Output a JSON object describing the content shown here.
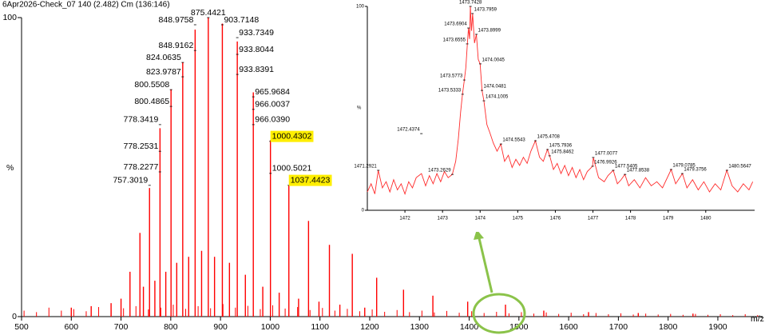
{
  "chart_data": [
    {
      "type": "spectrum",
      "title": "6Apr2026-Check_07 140 (2.482) Cm (136:146)",
      "y_label": "%",
      "x_label": "m/z",
      "color": "#ff0000",
      "axis_color": "#000000",
      "xlim": [
        500,
        1990
      ],
      "ylim": [
        0,
        100
      ],
      "xticks": [
        500,
        600,
        700,
        800,
        900,
        1000,
        1100,
        1200,
        1300,
        1400,
        1500,
        1600,
        1700,
        1800,
        1900
      ],
      "yticks": [
        0,
        100
      ],
      "x": [
        600,
        640,
        680,
        700,
        718,
        738,
        745,
        757.3019,
        768,
        778.3419,
        790,
        800.5508,
        812,
        824.0635,
        836,
        848.9758,
        862,
        875.4421,
        888,
        903.7148,
        918,
        933.7349,
        950,
        965.9684,
        985,
        1000.4302,
        1018,
        1037.4423,
        1057,
        1077,
        1098,
        1119,
        1140,
        1165,
        1190,
        1214,
        1268,
        1327,
        1397,
        1473,
        1550,
        1640,
        1740,
        1850
      ],
      "values": [
        3,
        3.5,
        4.5,
        6,
        15,
        28,
        10,
        43,
        12,
        63,
        15,
        76,
        18,
        85,
        20,
        96,
        22,
        100,
        20,
        98,
        18,
        92,
        14,
        75,
        10,
        59,
        8,
        44,
        6,
        32,
        5,
        24,
        4,
        21,
        3,
        13,
        9,
        7,
        5,
        4,
        2,
        1.5,
        1.2,
        1
      ],
      "noise_x": [
        505,
        530,
        555,
        580,
        605,
        630,
        655,
        680,
        705,
        730,
        755,
        780,
        805,
        830,
        855,
        880,
        905,
        930,
        955,
        980,
        1005,
        1030,
        1055,
        1080,
        1105,
        1130,
        1155,
        1180,
        1205,
        1230,
        1255,
        1280,
        1305,
        1330,
        1355,
        1380,
        1405,
        1430,
        1455,
        1480,
        1505,
        1530,
        1555,
        1580,
        1605,
        1630,
        1655,
        1680,
        1705,
        1730,
        1755,
        1780,
        1805,
        1830,
        1855,
        1880,
        1905,
        1930,
        1955,
        1980
      ],
      "noise_values": [
        2,
        1.5,
        3,
        2,
        2.5,
        1.8,
        3.2,
        2.2,
        2.8,
        3.5,
        2.4,
        3,
        4,
        2.6,
        3.5,
        2.8,
        4.2,
        3,
        3.6,
        2.5,
        3.8,
        2.7,
        3.2,
        2.2,
        2.9,
        2,
        2.6,
        1.8,
        2.4,
        1.6,
        2.2,
        1.5,
        2,
        1.4,
        1.9,
        1.3,
        1.8,
        1.2,
        1.6,
        1.1,
        1.5,
        1,
        1.4,
        0.9,
        1.3,
        0.8,
        1.2,
        0.8,
        1.1,
        0.7,
        1,
        0.7,
        0.9,
        0.6,
        0.9,
        0.6,
        0.8,
        0.5,
        0.8,
        0.5
      ],
      "label_text": [
        "757.3019",
        "778.2277",
        "778.2531",
        "778.3419",
        "800.4865",
        "800.5508",
        "823.9787",
        "824.0635",
        "848.9162",
        "848.9758",
        "875.4421",
        "903.7148",
        "933.7349",
        "933.8044",
        "933.8391",
        "965.9684",
        "966.0037",
        "966.0390",
        "1000.4302",
        "1000.5021",
        "1037.4423"
      ],
      "label_x": [
        757.3019,
        778.2277,
        778.2531,
        778.3419,
        800.4865,
        800.5508,
        823.9787,
        824.0635,
        848.9162,
        848.9758,
        875.4421,
        903.7148,
        933.7349,
        933.8044,
        933.8391,
        965.9684,
        966.0037,
        966.039,
        1000.4302,
        1000.5021,
        1037.4423
      ],
      "label_y": [
        43.9,
        48.4,
        55.3,
        64.2,
        70.3,
        75.9,
        80.2,
        85.0,
        89.0,
        97.6,
        100,
        97.6,
        93.3,
        87.7,
        81.0,
        73.5,
        69.3,
        64.2,
        58.6,
        47.9,
        43.9
      ],
      "highlight": [
        18,
        20
      ],
      "highlight_color": "#ffee00"
    },
    {
      "type": "profile",
      "y_label": "%",
      "color": "#ff2a2a",
      "axis_color": "#000000",
      "xlim": [
        1471,
        1481.3
      ],
      "ylim": [
        0,
        100
      ],
      "xticks": [
        1472,
        1473,
        1474,
        1475,
        1476,
        1477,
        1478,
        1479,
        1480
      ],
      "yticks": [
        0,
        100
      ],
      "x": [
        1471.0,
        1471.1,
        1471.2,
        1471.29,
        1471.4,
        1471.5,
        1471.6,
        1471.7,
        1471.8,
        1471.9,
        1472.0,
        1472.1,
        1472.2,
        1472.3,
        1472.44,
        1472.55,
        1472.65,
        1472.75,
        1472.85,
        1472.95,
        1473.05,
        1473.15,
        1473.26,
        1473.35,
        1473.42,
        1473.48,
        1473.53,
        1473.58,
        1473.62,
        1473.66,
        1473.69,
        1473.72,
        1473.74,
        1473.77,
        1473.8,
        1473.85,
        1473.9,
        1473.95,
        1474.0,
        1474.05,
        1474.1,
        1474.18,
        1474.26,
        1474.35,
        1474.45,
        1474.55,
        1474.65,
        1474.75,
        1474.85,
        1474.95,
        1475.05,
        1475.15,
        1475.25,
        1475.35,
        1475.47,
        1475.58,
        1475.68,
        1475.79,
        1475.85,
        1475.95,
        1476.05,
        1476.15,
        1476.25,
        1476.35,
        1476.45,
        1476.55,
        1476.65,
        1476.75,
        1476.85,
        1476.99,
        1477.01,
        1477.15,
        1477.3,
        1477.4,
        1477.54,
        1477.65,
        1477.75,
        1477.85,
        1477.95,
        1478.1,
        1478.25,
        1478.4,
        1478.55,
        1478.7,
        1478.85,
        1479.08,
        1479.2,
        1479.38,
        1479.5,
        1479.65,
        1479.8,
        1479.95,
        1480.1,
        1480.25,
        1480.4,
        1480.56,
        1480.7,
        1480.85,
        1481.0,
        1481.15,
        1481.25
      ],
      "values": [
        9,
        13,
        8,
        19.6,
        11,
        14,
        9,
        15,
        10,
        13,
        8,
        14,
        11,
        16,
        18,
        12,
        17,
        13,
        18,
        14,
        19,
        16,
        17.6,
        24,
        35,
        48,
        56.9,
        63.9,
        70,
        81.6,
        89.4,
        84,
        100,
        88,
        96.5,
        82,
        86.3,
        74,
        71.8,
        58.8,
        53.7,
        42,
        38,
        33,
        29,
        32.5,
        24,
        27,
        21,
        25,
        22,
        26,
        23,
        29,
        34.1,
        26,
        24,
        29.8,
        26.7,
        20,
        23,
        18,
        22,
        17,
        21,
        16,
        20,
        15,
        19,
        21.6,
        25.9,
        16,
        14,
        17,
        19.6,
        13,
        15,
        17.6,
        12,
        15,
        11,
        16,
        12,
        14,
        11,
        20,
        13,
        18,
        11,
        15,
        10,
        14,
        9,
        13,
        10,
        19.6,
        12,
        9,
        13,
        10,
        14
      ],
      "label_text": [
        "1471.2921",
        "1472.4374",
        "1473.2629",
        "1473.5333",
        "1473.5773",
        "1473.6555",
        "1473.6904",
        "1473.7428",
        "1473.7959",
        "1473.8999",
        "1474.0045",
        "1474.0481",
        "1474.1005",
        "1474.5543",
        "1475.4708",
        "1475.7936",
        "1475.8462",
        "1476.9926",
        "1477.0077",
        "1477.5405",
        "1477.8538",
        "1479.0785",
        "1479.3756",
        "1480.5647"
      ],
      "label_x": [
        1471.2921,
        1472.4374,
        1473.2629,
        1473.5333,
        1473.5773,
        1473.6555,
        1473.6904,
        1473.7428,
        1473.7959,
        1473.8999,
        1474.0045,
        1474.0481,
        1474.1005,
        1474.5543,
        1475.4708,
        1475.7936,
        1475.8462,
        1476.9926,
        1477.0077,
        1477.5405,
        1477.8538,
        1479.0785,
        1479.3756,
        1480.5647
      ],
      "label_y": [
        19.6,
        37.6,
        17.6,
        56.9,
        63.9,
        81.6,
        89.4,
        100,
        96.5,
        86.3,
        71.8,
        58.8,
        53.7,
        32.5,
        34.1,
        29.8,
        26.7,
        21.6,
        25.9,
        19.6,
        17.6,
        20,
        18,
        19.6
      ]
    }
  ]
}
